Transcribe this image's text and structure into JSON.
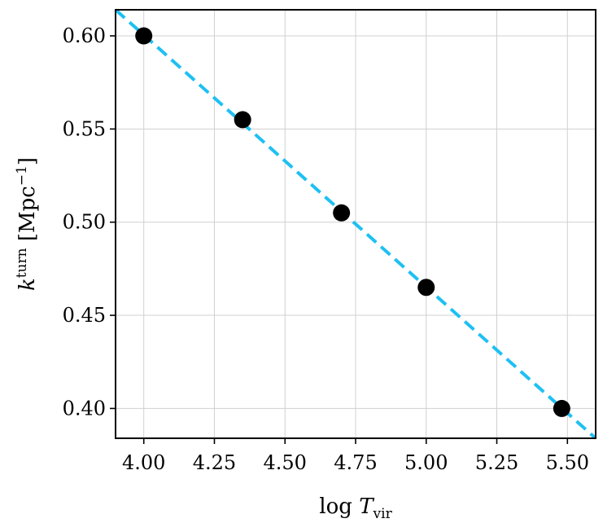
{
  "chart_data": {
    "type": "scatter",
    "xlabel": "log T_vir",
    "ylabel": "k^turn [Mpc^-1]",
    "xlim": [
      3.9,
      5.6
    ],
    "ylim": [
      0.384,
      0.614
    ],
    "xticks": [
      4.0,
      4.25,
      4.5,
      4.75,
      5.0,
      5.25,
      5.5
    ],
    "xtick_labels": [
      "4.00",
      "4.25",
      "4.50",
      "4.75",
      "5.00",
      "5.25",
      "5.50"
    ],
    "yticks": [
      0.4,
      0.45,
      0.5,
      0.55,
      0.6
    ],
    "ytick_labels": [
      "0.40",
      "0.45",
      "0.50",
      "0.55",
      "0.60"
    ],
    "grid": true,
    "series": [
      {
        "kind": "scatter",
        "color": "#000000",
        "x": [
          4.0,
          4.35,
          4.7,
          5.0,
          5.48
        ],
        "y": [
          0.6,
          0.555,
          0.505,
          0.465,
          0.4
        ]
      },
      {
        "kind": "line",
        "style": "dashed",
        "color": "#1ec0f2",
        "x": [
          3.9,
          5.6
        ],
        "y": [
          0.614,
          0.384
        ]
      }
    ]
  }
}
